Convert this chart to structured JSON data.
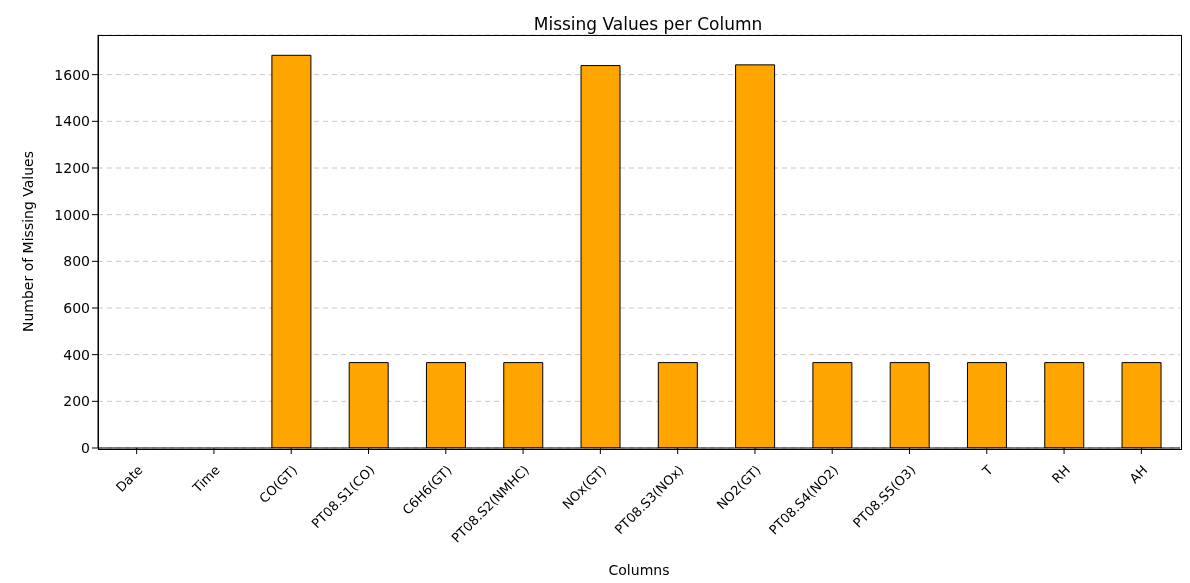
{
  "chart_data": {
    "type": "bar",
    "title": "Missing Values per Column",
    "xlabel": "Columns",
    "ylabel": "Number of Missing Values",
    "categories": [
      "Date",
      "Time",
      "CO(GT)",
      "PT08.S1(CO)",
      "C6H6(GT)",
      "PT08.S2(NMHC)",
      "NOx(GT)",
      "PT08.S3(NOx)",
      "NO2(GT)",
      "PT08.S4(NO2)",
      "PT08.S5(O3)",
      "T",
      "RH",
      "AH"
    ],
    "values": [
      0,
      0,
      1683,
      366,
      366,
      366,
      1639,
      366,
      1642,
      366,
      366,
      366,
      366,
      366
    ],
    "color": "#ffa500",
    "ylim": [
      0,
      1770
    ],
    "yticks": [
      0,
      200,
      400,
      600,
      800,
      1000,
      1200,
      1400,
      1600
    ],
    "grid": "y"
  }
}
